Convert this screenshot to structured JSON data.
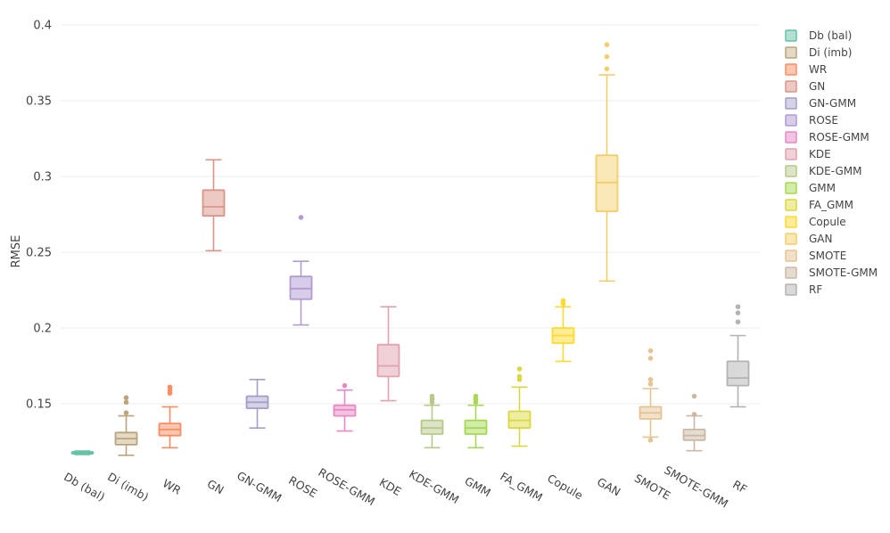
{
  "chart_data": {
    "type": "box",
    "title": "",
    "xlabel": "",
    "ylabel": "RMSE",
    "ylim": [
      0.105,
      0.405
    ],
    "yticks": [
      0.15,
      0.2,
      0.25,
      0.3,
      0.35,
      0.4
    ],
    "ytick_labels": [
      "0.15",
      "0.2",
      "0.25",
      "0.3",
      "0.35",
      "0.4"
    ],
    "legend_position": "right",
    "series": [
      {
        "name": "Db (bal)",
        "color": "#66c2a5",
        "fill": "#b3e0d2",
        "lower": 0.1165,
        "q1": 0.1172,
        "median": 0.1177,
        "q3": 0.1182,
        "upper": 0.1188,
        "outliers": []
      },
      {
        "name": "Di (imb)",
        "color": "#b9a47c",
        "fill": "#e3d9c4",
        "lower": 0.116,
        "q1": 0.123,
        "median": 0.127,
        "q3": 0.131,
        "upper": 0.142,
        "outliers": [
          0.144,
          0.151,
          0.154
        ]
      },
      {
        "name": "WR",
        "color": "#fc8d62",
        "fill": "#fdc6b0",
        "lower": 0.121,
        "q1": 0.129,
        "median": 0.133,
        "q3": 0.137,
        "upper": 0.148,
        "outliers": [
          0.157,
          0.159,
          0.161
        ]
      },
      {
        "name": "GN",
        "color": "#d9958a",
        "fill": "#ecc9c3",
        "lower": 0.251,
        "q1": 0.274,
        "median": 0.28,
        "q3": 0.291,
        "upper": 0.311,
        "outliers": []
      },
      {
        "name": "GN-GMM",
        "color": "#a39fc6",
        "fill": "#d4d2e6",
        "lower": 0.134,
        "q1": 0.147,
        "median": 0.151,
        "q3": 0.155,
        "upper": 0.166,
        "outliers": []
      },
      {
        "name": "ROSE",
        "color": "#b19cd0",
        "fill": "#d8cde8",
        "lower": 0.202,
        "q1": 0.219,
        "median": 0.226,
        "q3": 0.234,
        "upper": 0.244,
        "outliers": [
          0.273
        ]
      },
      {
        "name": "ROSE-GMM",
        "color": "#e78ac3",
        "fill": "#f3c4e1",
        "lower": 0.132,
        "q1": 0.142,
        "median": 0.146,
        "q3": 0.149,
        "upper": 0.159,
        "outliers": [
          0.162
        ]
      },
      {
        "name": "KDE",
        "color": "#e0a3ae",
        "fill": "#f0d1d7",
        "lower": 0.152,
        "q1": 0.168,
        "median": 0.175,
        "q3": 0.189,
        "upper": 0.214,
        "outliers": []
      },
      {
        "name": "KDE-GMM",
        "color": "#b6c98a",
        "fill": "#dbe4c5",
        "lower": 0.121,
        "q1": 0.13,
        "median": 0.134,
        "q3": 0.139,
        "upper": 0.149,
        "outliers": [
          0.151,
          0.153,
          0.155
        ]
      },
      {
        "name": "GMM",
        "color": "#a6d854",
        "fill": "#d3ecaa",
        "lower": 0.121,
        "q1": 0.13,
        "median": 0.134,
        "q3": 0.139,
        "upper": 0.149,
        "outliers": [
          0.151,
          0.153,
          0.155
        ]
      },
      {
        "name": "FA_GMM",
        "color": "#d9d843",
        "fill": "#eeeda1",
        "lower": 0.122,
        "q1": 0.134,
        "median": 0.139,
        "q3": 0.145,
        "upper": 0.161,
        "outliers": [
          0.166,
          0.168,
          0.173
        ]
      },
      {
        "name": "Copule",
        "color": "#ffd92f",
        "fill": "#ffec97",
        "lower": 0.178,
        "q1": 0.19,
        "median": 0.195,
        "q3": 0.2,
        "upper": 0.214,
        "outliers": [
          0.216,
          0.218
        ]
      },
      {
        "name": "GAN",
        "color": "#f2cf6b",
        "fill": "#f9e7b5",
        "lower": 0.231,
        "q1": 0.277,
        "median": 0.296,
        "q3": 0.314,
        "upper": 0.367,
        "outliers": [
          0.371,
          0.379,
          0.387
        ]
      },
      {
        "name": "SMOTE",
        "color": "#e5c494",
        "fill": "#f2e1ca",
        "lower": 0.128,
        "q1": 0.14,
        "median": 0.144,
        "q3": 0.148,
        "upper": 0.16,
        "outliers": [
          0.126,
          0.163,
          0.166,
          0.18,
          0.185
        ]
      },
      {
        "name": "SMOTE-GMM",
        "color": "#cbb9a4",
        "fill": "#e5dcd1",
        "lower": 0.119,
        "q1": 0.126,
        "median": 0.129,
        "q3": 0.133,
        "upper": 0.142,
        "outliers": [
          0.143,
          0.155
        ]
      },
      {
        "name": "RF",
        "color": "#b3b3b3",
        "fill": "#d9d9d9",
        "lower": 0.148,
        "q1": 0.162,
        "median": 0.167,
        "q3": 0.178,
        "upper": 0.195,
        "outliers": [
          0.204,
          0.21,
          0.214
        ]
      }
    ]
  }
}
